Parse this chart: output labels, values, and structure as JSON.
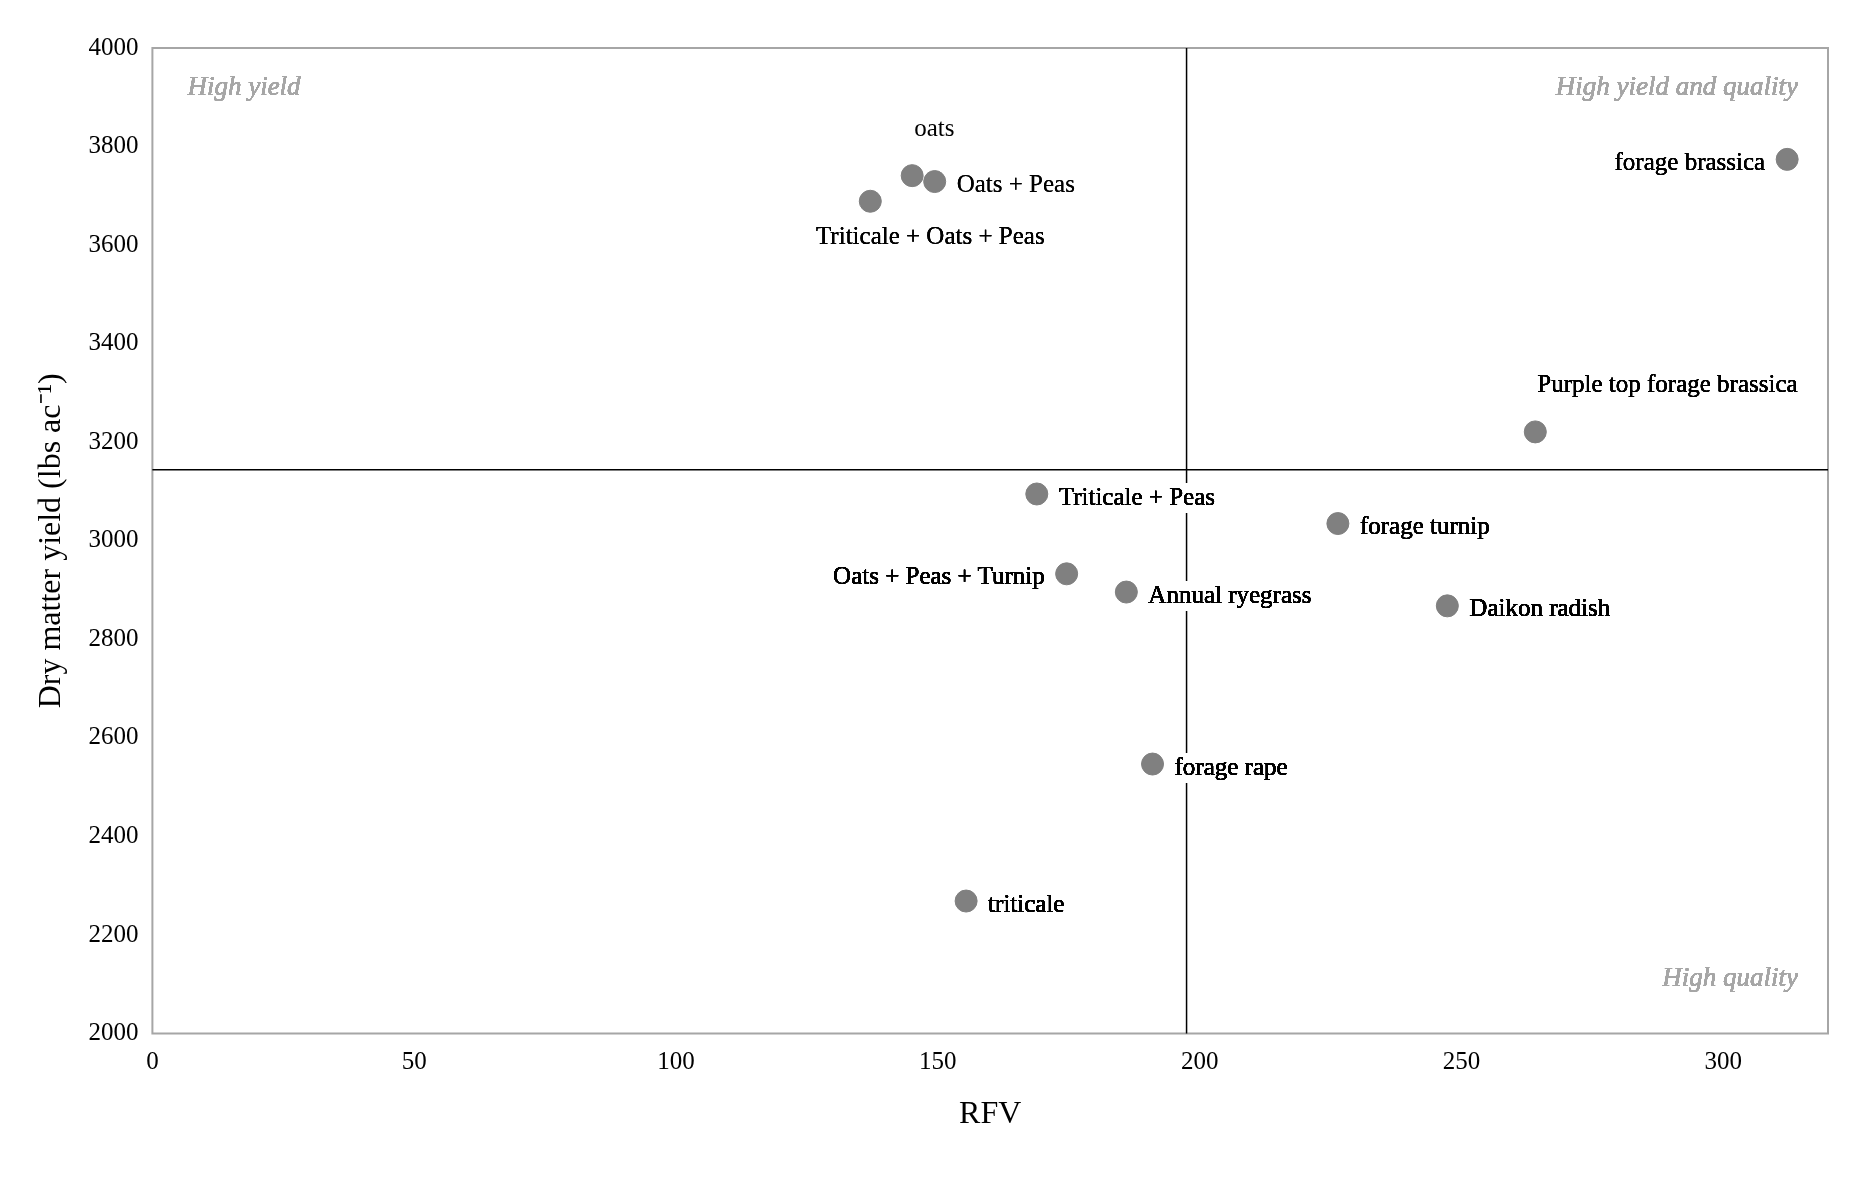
{
  "chart_data": {
    "type": "scatter",
    "xlabel": "RFV",
    "ylabel": "Dry matter yield (lbs ac⁻¹)",
    "xlim": [
      0,
      320
    ],
    "xticks": [
      0,
      50,
      100,
      150,
      200,
      250,
      300
    ],
    "ylim": [
      2000,
      4000
    ],
    "yticks": [
      2000,
      2200,
      2400,
      2600,
      2800,
      3000,
      3200,
      3400,
      3600,
      3800,
      4000
    ],
    "grid": false,
    "legend": false,
    "marker": "circle",
    "series": [
      {
        "name": "oats",
        "color": "#808080",
        "x": [
          145.1
        ],
        "values": [
          3741
        ]
      },
      {
        "name": "Oats + Peas",
        "color": "#808080",
        "x": [
          149.4
        ],
        "values": [
          3729
        ]
      },
      {
        "name": "Triticale + Oats + Peas",
        "color": "#808080",
        "x": [
          137.1
        ],
        "values": [
          3689
        ]
      },
      {
        "name": "forage brassica",
        "color": "#808080",
        "x": [
          312.2
        ],
        "values": [
          3774
        ]
      },
      {
        "name": "Purple top forage brassica",
        "color": "#808080",
        "x": [
          264.1
        ],
        "values": [
          3221
        ]
      },
      {
        "name": "Triticale + Peas",
        "color": "#808080",
        "x": [
          168.9
        ],
        "values": [
          3095
        ]
      },
      {
        "name": "forage turnip",
        "color": "#808080",
        "x": [
          226.4
        ],
        "values": [
          3035
        ]
      },
      {
        "name": "Oats + Peas + Turnip",
        "color": "#808080",
        "x": [
          174.6
        ],
        "values": [
          2933
        ]
      },
      {
        "name": "Annual ryegrass",
        "color": "#808080",
        "x": [
          186.0
        ],
        "values": [
          2896
        ]
      },
      {
        "name": "Daikon radish",
        "color": "#808080",
        "x": [
          247.3
        ],
        "values": [
          2868
        ]
      },
      {
        "name": "forage rape",
        "color": "#808080",
        "x": [
          191.0
        ],
        "values": [
          2547
        ]
      },
      {
        "name": "triticale",
        "color": "#808080",
        "x": [
          155.4
        ],
        "values": [
          2269
        ]
      }
    ],
    "ref_lines": [
      {
        "axis": "x",
        "value": 197.5,
        "color": "#000000"
      },
      {
        "axis": "y",
        "value": 3144,
        "color": "#000000"
      }
    ],
    "annotations": [
      "High yield",
      "High yield and quality",
      "High quality"
    ]
  }
}
